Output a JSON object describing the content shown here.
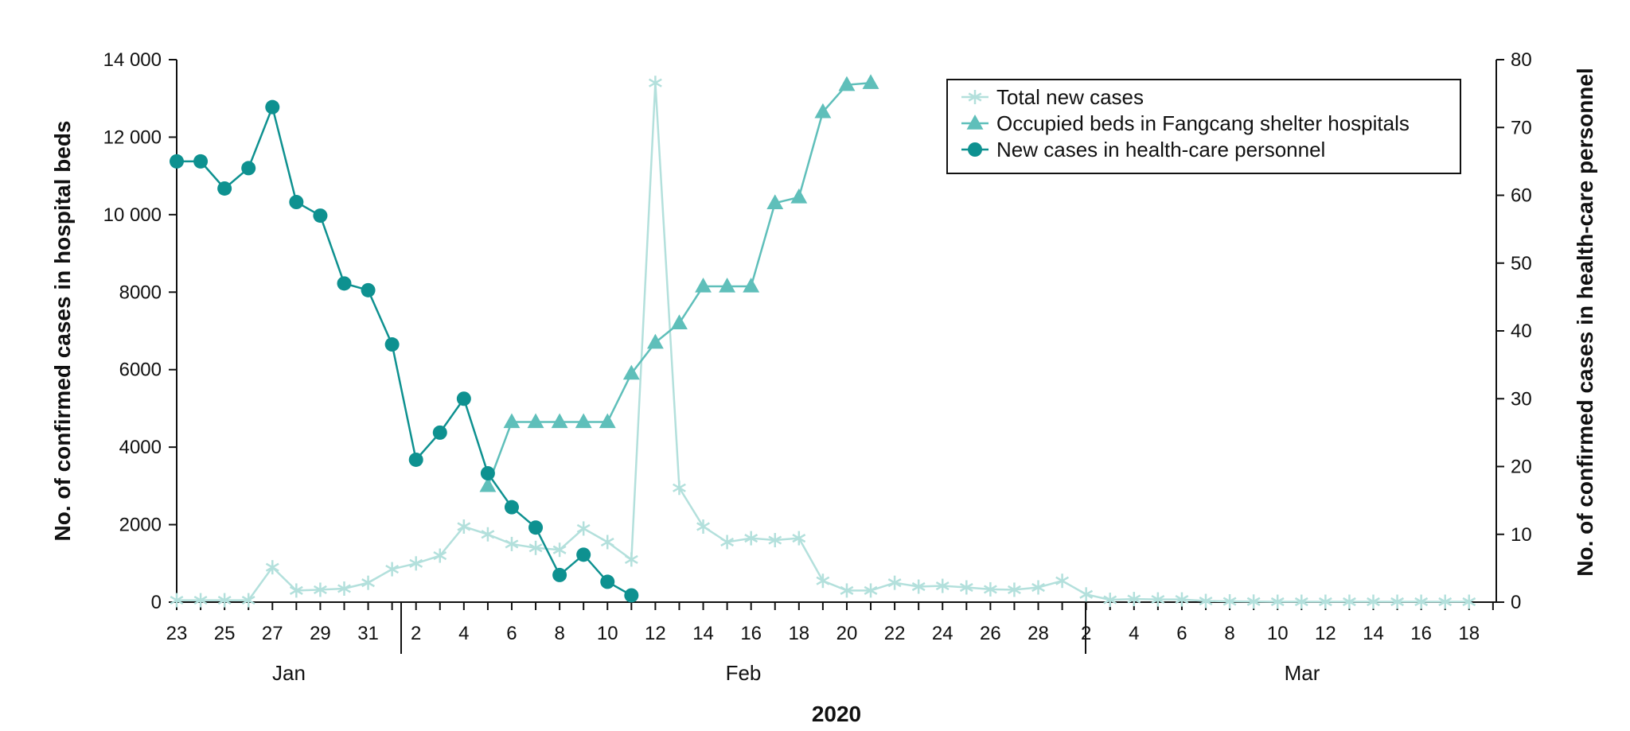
{
  "chart_data": {
    "type": "line",
    "xlabel": "2020",
    "ylabel_left": "No. of confirmed cases in hospital beds",
    "ylabel_right": "No. of confirmed cases in health-care personnel",
    "ylim_left": [
      0,
      14000
    ],
    "ylim_right": [
      0,
      80
    ],
    "yticks_left": [
      "0",
      "2000",
      "4000",
      "6000",
      "8000",
      "10 000",
      "12 000",
      "14 000"
    ],
    "yticks_right": [
      "0",
      "10",
      "20",
      "30",
      "40",
      "50",
      "60",
      "70",
      "80"
    ],
    "x_tick_labels": [
      "23",
      "25",
      "27",
      "29",
      "31",
      "2",
      "4",
      "6",
      "8",
      "10",
      "12",
      "14",
      "16",
      "18",
      "20",
      "22",
      "24",
      "26",
      "28",
      "2",
      "4",
      "6",
      "8",
      "10",
      "12",
      "14",
      "16",
      "18"
    ],
    "months": [
      "Jan",
      "Feb",
      "Mar"
    ],
    "legend": [
      "Total new cases",
      "Occupied beds in Fangcang shelter hospitals",
      "New cases  in health-care personnel"
    ],
    "colors": {
      "total_new_cases": "#b3e0dc",
      "fangcang_beds": "#5fbfba",
      "health_care": "#0e9190"
    },
    "series": [
      {
        "name": "Total new cases",
        "axis": "left",
        "marker": "star",
        "start_day": 0,
        "values": [
          50,
          50,
          50,
          50,
          900,
          300,
          320,
          350,
          500,
          850,
          1000,
          1200,
          1950,
          1750,
          1500,
          1400,
          1350,
          1900,
          1550,
          1100,
          13400,
          2950,
          1950,
          1550,
          1650,
          1600,
          1650,
          550,
          300,
          300,
          500,
          400,
          420,
          380,
          330,
          320,
          380,
          550,
          200,
          60,
          80,
          70,
          70,
          30,
          20,
          15,
          10,
          10,
          10,
          10,
          10,
          10,
          10,
          10,
          10
        ]
      },
      {
        "name": "Occupied beds in Fangcang shelter hospitals",
        "axis": "left",
        "marker": "triangle",
        "start_day": 13,
        "values": [
          3000,
          4650,
          4650,
          4650,
          4650,
          4650,
          5900,
          6700,
          7200,
          8150,
          8150,
          8150,
          10300,
          10450,
          12650,
          13350,
          13400
        ]
      },
      {
        "name": "New cases  in health-care personnel",
        "axis": "right",
        "marker": "circle",
        "start_day": 0,
        "values": [
          65,
          65,
          61,
          64,
          73,
          59,
          57,
          47,
          46,
          38,
          21,
          25,
          30,
          19,
          14,
          11,
          4,
          7,
          3,
          1
        ]
      }
    ]
  }
}
